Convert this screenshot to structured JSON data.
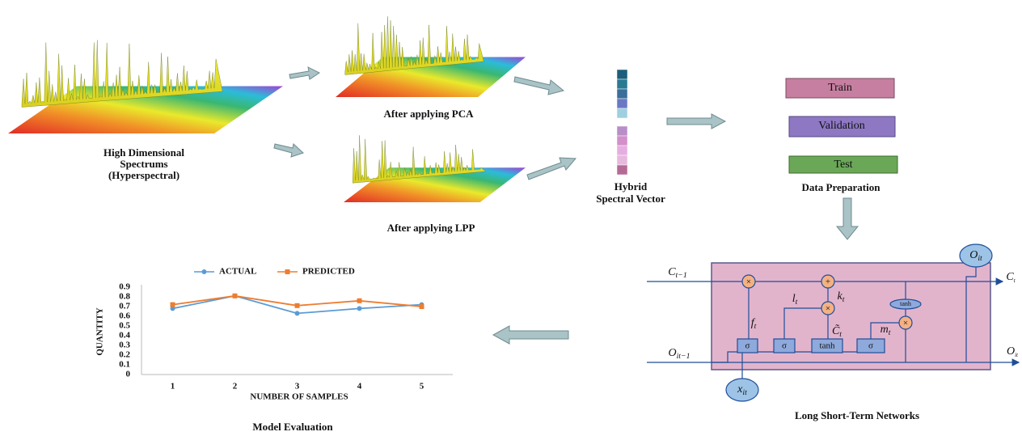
{
  "input": {
    "label_lines": [
      "High Dimensional",
      "Spectrums",
      "(Hyperspectral)"
    ]
  },
  "pca": {
    "label": "After applying PCA"
  },
  "lpp": {
    "label": "After applying LPP"
  },
  "vector": {
    "label_lines": [
      "Hybrid",
      "Spectral Vector"
    ]
  },
  "data_preparation": {
    "title": "Data Preparation",
    "splits": [
      "Train",
      "Validation",
      "Test"
    ]
  },
  "lstm": {
    "title": "Long Short-Term Networks",
    "symbols": [
      {
        "base": "C",
        "sub": "t−1"
      },
      {
        "base": "C",
        "sub": "t"
      },
      {
        "base": "O",
        "sub": "it−1"
      },
      {
        "base": "O",
        "sub": "it"
      },
      {
        "base": "O",
        "sub": "it"
      },
      {
        "base": "x",
        "sub": "it"
      },
      {
        "base": "f",
        "sub": "t"
      },
      {
        "base": "l",
        "sub": "t"
      },
      {
        "base": "k",
        "sub": "t"
      },
      {
        "base": "C̃",
        "sub": "t"
      },
      {
        "base": "m",
        "sub": "t"
      }
    ],
    "gates": [
      "σ",
      "σ",
      "tanh",
      "σ"
    ],
    "operators": [
      "×",
      "+",
      "×",
      "×"
    ],
    "activation": "tanh"
  },
  "chart_data": {
    "type": "line",
    "title": "Model Evaluation",
    "x_label": "NUMBER OF SAMPLES",
    "y_label": "QUANTITY",
    "categories": [
      "1",
      "2",
      "3",
      "4",
      "5"
    ],
    "series": [
      {
        "name": "ACTUAL",
        "color": "#5b9bd5",
        "values": [
          0.68,
          0.81,
          0.63,
          0.68,
          0.72
        ]
      },
      {
        "name": "PREDICTED",
        "color": "#ed7d31",
        "values": [
          0.72,
          0.81,
          0.71,
          0.76,
          0.7
        ]
      }
    ],
    "ylim": [
      0,
      0.9
    ],
    "yticks": [
      0,
      0.1,
      0.2,
      0.3,
      0.4,
      0.5,
      0.6,
      0.7,
      0.8,
      0.9
    ],
    "grid": false,
    "legend": "top"
  }
}
